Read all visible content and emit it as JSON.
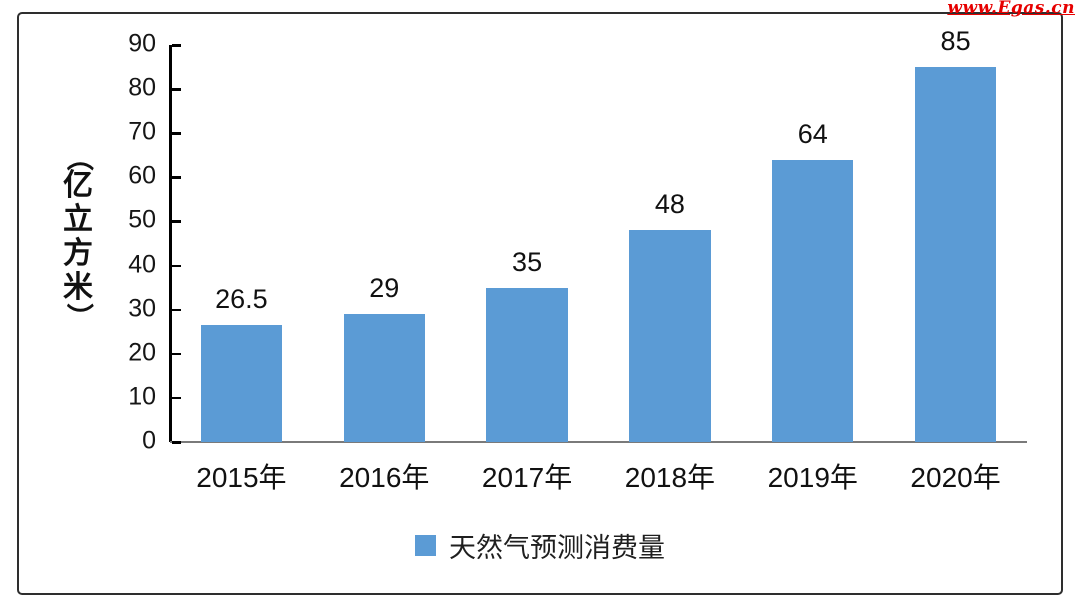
{
  "watermark": "www.Egas.cn",
  "colors": {
    "bar": "#5b9bd5",
    "axis": "#000000",
    "x_axis_line": "#7a7a7a",
    "border": "#2e2e2e",
    "text": "#111111",
    "watermark": "#e60000"
  },
  "chart_data": {
    "type": "bar",
    "categories": [
      "2015年",
      "2016年",
      "2017年",
      "2018年",
      "2019年",
      "2020年"
    ],
    "values": [
      26.5,
      29,
      35,
      48,
      64,
      85
    ],
    "data_labels": [
      "26.5",
      "29",
      "35",
      "48",
      "64",
      "85"
    ],
    "title": "",
    "xlabel": "",
    "ylabel": "（亿立方米）",
    "ylabel_chars": [
      "（",
      "亿",
      "立",
      "方",
      "米",
      "）"
    ],
    "ylim": [
      0,
      90
    ],
    "ytick_step": 10,
    "yticks": [
      0,
      10,
      20,
      30,
      40,
      50,
      60,
      70,
      80,
      90
    ],
    "grid": false,
    "bar_width_ratio": 0.57,
    "legend": {
      "position": "bottom",
      "entries": [
        {
          "label": "天然气预测消费量",
          "color": "#5b9bd5"
        }
      ]
    }
  }
}
